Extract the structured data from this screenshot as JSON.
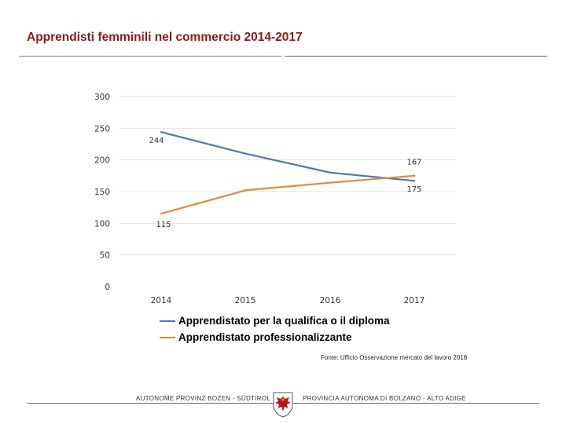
{
  "header": {
    "title": "Apprendisti femminili nel commercio 2014-2017"
  },
  "chart_data": {
    "type": "line",
    "title": "Apprendisti femminili nel commercio 2014-2017",
    "xlabel": "",
    "ylabel": "",
    "categories": [
      "2014",
      "2015",
      "2016",
      "2017"
    ],
    "ylim": [
      0,
      300
    ],
    "yticks": [
      "0",
      "50",
      "100",
      "150",
      "200",
      "250",
      "300"
    ],
    "grid": true,
    "legend_position": "bottom",
    "series": [
      {
        "name": "Apprendistato per la qualifica o il diploma",
        "color": "#4a7ab5",
        "values": [
          244,
          210,
          180,
          167
        ],
        "data_labels": {
          "0": "244",
          "3": "167"
        }
      },
      {
        "name": "Apprendistato professionalizzante",
        "color": "#e8873a",
        "values": [
          115,
          152,
          164,
          175
        ],
        "data_labels": {
          "0": "115",
          "3": "175"
        }
      }
    ]
  },
  "source": "Fonte: Ufficio Osservazione mercato del lavoro 2018",
  "footer": {
    "left": "AUTONOME PROVINZ BOZEN - SÜDTIROL",
    "right": "PROVINCIA AUTONOMA DI BOLZANO - ALTO ADIGE",
    "crest_icon": "tyrol-eagle-crest-icon"
  }
}
